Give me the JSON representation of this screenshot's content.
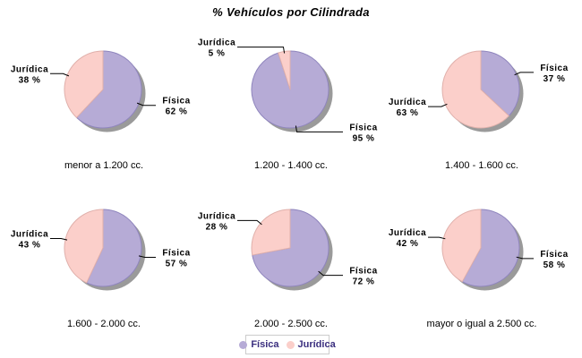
{
  "title": "% Vehículos por Cilindrada",
  "colors": {
    "fisica_fill": "#b6abd6",
    "fisica_edge": "#8f85bd",
    "juridica_fill": "#fbcfca",
    "juridica_edge": "#e0b0ab",
    "shadow": "#9a9a9a",
    "leader_line": "#000000",
    "legend_text": "#3b2f7f",
    "legend_border": "#cccccc"
  },
  "legend": {
    "items": [
      {
        "label": "Física",
        "color": "#b6abd6"
      },
      {
        "label": "Jurídica",
        "color": "#fbcfca"
      }
    ]
  },
  "value_suffix": " %",
  "chart_data": [
    {
      "type": "pie",
      "title": "menor a 1.200 cc.",
      "labels": [
        "Física",
        "Jurídica"
      ],
      "values": [
        62,
        38
      ],
      "colors": [
        "#b6abd6",
        "#fbcfca"
      ],
      "legend_position": "bottom"
    },
    {
      "type": "pie",
      "title": "1.200 - 1.400 cc.",
      "labels": [
        "Física",
        "Jurídica"
      ],
      "values": [
        95,
        5
      ],
      "colors": [
        "#b6abd6",
        "#fbcfca"
      ],
      "legend_position": "bottom"
    },
    {
      "type": "pie",
      "title": "1.400 - 1.600 cc.",
      "labels": [
        "Física",
        "Jurídica"
      ],
      "values": [
        37,
        63
      ],
      "colors": [
        "#b6abd6",
        "#fbcfca"
      ],
      "legend_position": "bottom"
    },
    {
      "type": "pie",
      "title": "1.600 - 2.000 cc.",
      "labels": [
        "Física",
        "Jurídica"
      ],
      "values": [
        57,
        43
      ],
      "colors": [
        "#b6abd6",
        "#fbcfca"
      ],
      "legend_position": "bottom"
    },
    {
      "type": "pie",
      "title": "2.000 - 2.500 cc.",
      "labels": [
        "Física",
        "Jurídica"
      ],
      "values": [
        72,
        28
      ],
      "colors": [
        "#b6abd6",
        "#fbcfca"
      ],
      "legend_position": "bottom"
    },
    {
      "type": "pie",
      "title": "mayor o igual a 2.500 cc.",
      "labels": [
        "Física",
        "Jurídica"
      ],
      "values": [
        58,
        42
      ],
      "colors": [
        "#b6abd6",
        "#fbcfca"
      ],
      "legend_position": "bottom"
    }
  ]
}
